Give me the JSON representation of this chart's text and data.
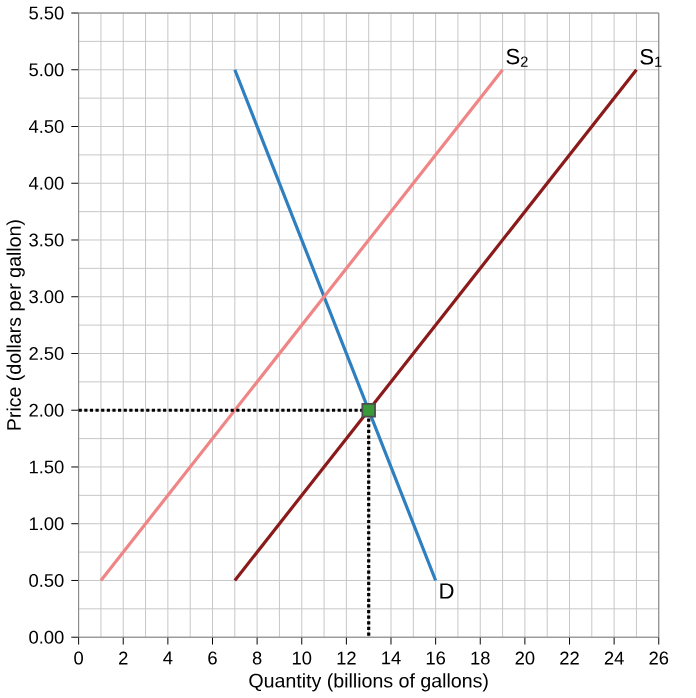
{
  "chart_data": {
    "type": "line",
    "xlabel": "Quantity (billions of gallons)",
    "ylabel": "Price (dollars per gallon)",
    "xlim": [
      0,
      26
    ],
    "ylim": [
      0,
      5.5
    ],
    "xticks": [
      0,
      2,
      4,
      6,
      8,
      10,
      12,
      14,
      16,
      18,
      20,
      22,
      24,
      26
    ],
    "yticks": [
      {
        "value": 0,
        "label": "0.00"
      },
      {
        "value": 0.5,
        "label": "0.50"
      },
      {
        "value": 1,
        "label": "1.00"
      },
      {
        "value": 1.5,
        "label": "1.50"
      },
      {
        "value": 2,
        "label": "2.00"
      },
      {
        "value": 2.5,
        "label": "2.50"
      },
      {
        "value": 3,
        "label": "3.00"
      },
      {
        "value": 3.5,
        "label": "3.50"
      },
      {
        "value": 4,
        "label": "4.00"
      },
      {
        "value": 4.5,
        "label": "4.50"
      },
      {
        "value": 5,
        "label": "5.00"
      },
      {
        "value": 5.5,
        "label": "5.50"
      }
    ],
    "grid": true,
    "series": [
      {
        "name": "D",
        "color": "#2e7fbf",
        "x": [
          7,
          16
        ],
        "values": [
          5,
          0.5
        ]
      },
      {
        "name": "S$_{2}$",
        "color": "#f08585",
        "x": [
          1,
          19
        ],
        "values": [
          0.5,
          5
        ]
      },
      {
        "name": "S$_{1}$",
        "color": "#8b1a1a",
        "x": [
          7,
          25
        ],
        "values": [
          0.5,
          5
        ]
      },
      {
        "color": "#000000",
        "x": [
          0,
          13,
          13
        ],
        "values": [
          2,
          2,
          0
        ],
        "line_style": "dotted"
      },
      {
        "type": "scatter",
        "color": "#3a9a3a",
        "x": [
          13
        ],
        "values": [
          2
        ],
        "marker": "square"
      }
    ]
  }
}
